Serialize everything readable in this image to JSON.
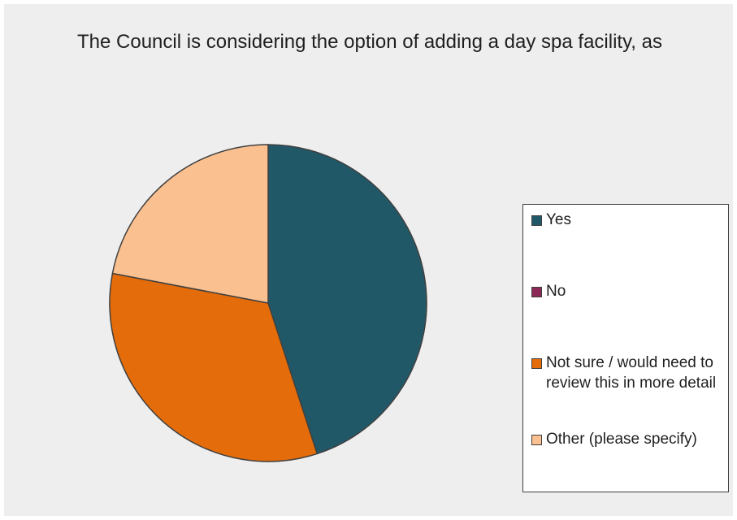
{
  "chart_data": {
    "type": "pie",
    "title": "The Council is considering the option of adding a day spa facility, as",
    "categories": [
      "Yes",
      "No",
      "Not sure / would need to review this in more detail",
      "Other (please specify)"
    ],
    "values": [
      45,
      0,
      33,
      22
    ],
    "colors": [
      "#215868",
      "#8b2857",
      "#e46c0a",
      "#fac090"
    ],
    "legend": "right"
  }
}
